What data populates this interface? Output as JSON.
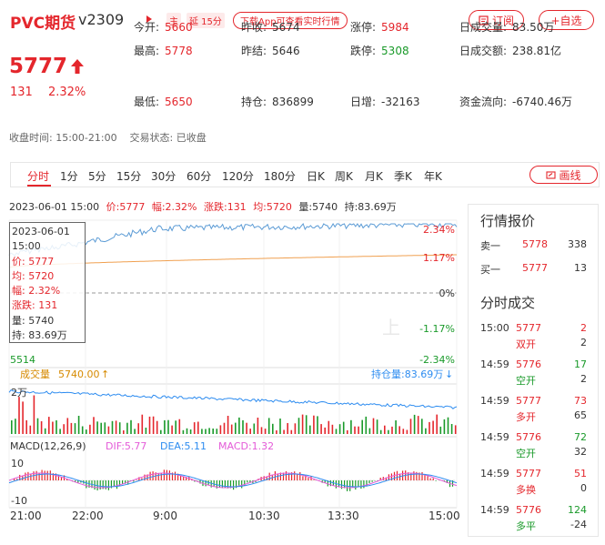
{
  "header": {
    "name": "PVC期货",
    "code": "v2309",
    "badge_main": "主",
    "badge_delay": "延 15分",
    "app_prompt": "下载App可查看实时行情",
    "subscribe": "订阅",
    "watchlist": "+自选"
  },
  "price": {
    "last": "5777",
    "change": "131",
    "change_pct": "2.32%"
  },
  "stats": {
    "open": {
      "label": "今开:",
      "value": "5660"
    },
    "prev_close": {
      "label": "昨收:",
      "value": "5674"
    },
    "limit_up": {
      "label": "涨停:",
      "value": "5984"
    },
    "day_volume": {
      "label": "日成交量:",
      "value": "83.50万"
    },
    "high": {
      "label": "最高:",
      "value": "5778"
    },
    "prev_settle": {
      "label": "昨结:",
      "value": "5646"
    },
    "limit_down": {
      "label": "跌停:",
      "value": "5308"
    },
    "day_turnover": {
      "label": "日成交额:",
      "value": "238.81亿"
    },
    "low": {
      "label": "最低:",
      "value": "5650"
    },
    "open_interest": {
      "label": "持仓:",
      "value": "836899"
    },
    "oi_change": {
      "label": "日增:",
      "value": "-32163"
    },
    "fund_flow": {
      "label": "资金流向:",
      "value": "-6740.46万"
    }
  },
  "status_line": "收盘时间: 15:00-21:00    交易状态: 已收盘",
  "tabs": [
    "分时",
    "1分",
    "5分",
    "15分",
    "30分",
    "60分",
    "120分",
    "180分",
    "日K",
    "周K",
    "月K",
    "季K",
    "年K"
  ],
  "draw_button": "画线",
  "info_line": {
    "datetime": "2023-06-01 15:00",
    "price": "价:5777",
    "range": "幅:2.32%",
    "change": "涨跌:131",
    "avg": "均:5720",
    "volume": "量:5740",
    "oi": "持:83.69万"
  },
  "hover_box": {
    "date": "2023-06-01",
    "time": "15:00",
    "price": "价: 5777",
    "avg": "均: 5720",
    "range": "幅: 2.32%",
    "change": "涨跌: 131",
    "volume": "量: 5740",
    "oi": "持: 83.69万"
  },
  "chart_labels": {
    "y_right": [
      "2.34%",
      "1.17%",
      "0%",
      "-1.17%",
      "-2.34%"
    ],
    "y_left_bottom": "5514",
    "volume_label": "成交量",
    "volume_value": "5740.00",
    "oi_label": "持仓量:83.69万",
    "volume_axis": "2万",
    "macd_title": "MACD(12,26,9)",
    "dif": "DIF:5.77",
    "dea": "DEA:5.11",
    "macd": "MACD:1.32",
    "macd_top": "10",
    "macd_bottom": "-10",
    "x_ticks": [
      "21:00",
      "22:00",
      "9:00",
      "10:30",
      "13:30",
      "15:00"
    ],
    "watermark": "上"
  },
  "side_panel": {
    "quote_title": "行情报价",
    "ask": {
      "label": "卖一",
      "price": "5778",
      "vol": "338"
    },
    "bid": {
      "label": "买一",
      "price": "5777",
      "vol": "13"
    },
    "trades_title": "分时成交",
    "trades": [
      {
        "time": "15:00",
        "price": "5777",
        "vol": "2",
        "type": "双开",
        "oi": "2"
      },
      {
        "time": "14:59",
        "price": "5776",
        "vol": "17",
        "type": "空开",
        "oi": "2"
      },
      {
        "time": "14:59",
        "price": "5777",
        "vol": "73",
        "type": "多开",
        "oi": "65"
      },
      {
        "time": "14:59",
        "price": "5776",
        "vol": "72",
        "type": "空开",
        "oi": "32"
      },
      {
        "time": "14:59",
        "price": "5777",
        "vol": "51",
        "type": "多换",
        "oi": "0"
      },
      {
        "time": "14:59",
        "price": "5776",
        "vol": "124",
        "type": "多平",
        "oi": "-24"
      }
    ]
  },
  "colors": {
    "up": "#e4262c",
    "down": "#1a9a2a",
    "price_line": "#5b9bd5",
    "avg_line": "#f0a050"
  }
}
